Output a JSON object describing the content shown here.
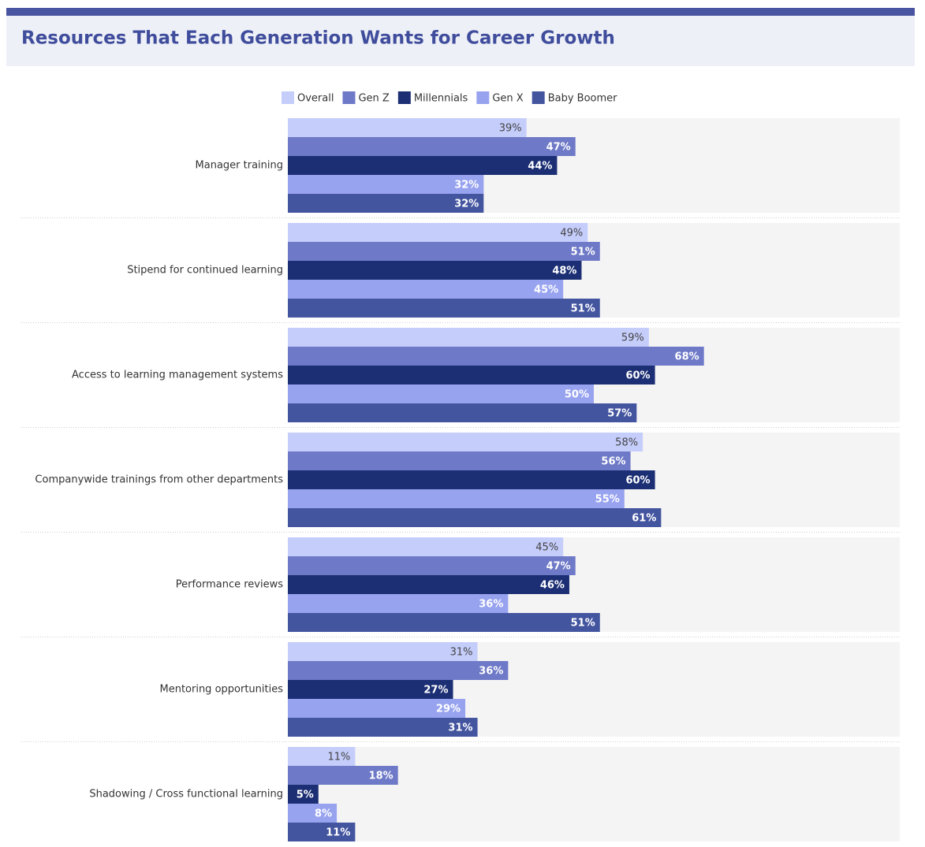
{
  "chart_data": {
    "type": "bar",
    "title": "Resources That Each Generation Wants for Career Growth",
    "categories": [
      "Manager training",
      "Stipend for continued learning",
      "Access to learning management systems",
      "Companywide trainings from other departments",
      "Performance reviews",
      "Mentoring opportunities",
      "Shadowing / Cross functional learning"
    ],
    "xlim": [
      0,
      100
    ],
    "series": [
      {
        "name": "Overall",
        "color": "#c5cdfb",
        "values": [
          39,
          49,
          59,
          58,
          45,
          31,
          11
        ],
        "value_labels": [
          "39%",
          "49%",
          "59%",
          "58%",
          "45%",
          "31%",
          "11%"
        ]
      },
      {
        "name": "Gen Z",
        "color": "#6e79c7",
        "values": [
          47,
          51,
          68,
          56,
          47,
          36,
          18
        ],
        "value_labels": [
          "47%",
          "51%",
          "68%",
          "56%",
          "47%",
          "36%",
          "18%"
        ]
      },
      {
        "name": "Millennials",
        "color": "#1c2f74",
        "values": [
          44,
          48,
          60,
          60,
          46,
          27,
          5
        ],
        "value_labels": [
          "44%",
          "48%",
          "60%",
          "60%",
          "46%",
          "27%",
          "5%"
        ]
      },
      {
        "name": "Gen X",
        "color": "#98a3f0",
        "values": [
          32,
          45,
          50,
          55,
          36,
          29,
          8
        ],
        "value_labels": [
          "32%",
          "45%",
          "50%",
          "55%",
          "36%",
          "29%",
          "8%"
        ]
      },
      {
        "name": "Baby Boomer",
        "color": "#4455a0",
        "values": [
          32,
          51,
          57,
          61,
          51,
          31,
          11
        ],
        "value_labels": [
          "32%",
          "51%",
          "57%",
          "61%",
          "51%",
          "31%",
          "11%"
        ]
      }
    ]
  }
}
